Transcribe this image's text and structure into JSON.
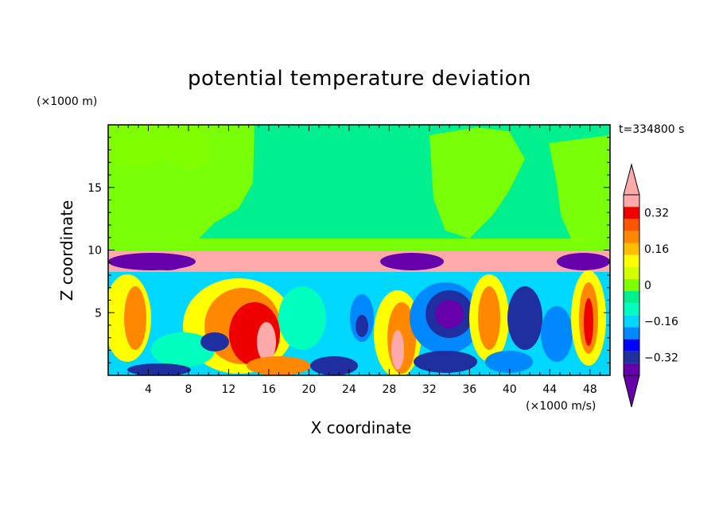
{
  "title": "potential temperature deviation",
  "time_label": "t=334800 s",
  "chart_data": {
    "type": "heatmap",
    "title": "potential temperature deviation",
    "xlabel": "X coordinate",
    "ylabel": "Z coordinate",
    "x_unit": "(×1000 m/s)",
    "y_unit": "(×1000 m)",
    "x_ticks": [
      "4",
      "8",
      "12",
      "16",
      "20",
      "24",
      "28",
      "32",
      "36",
      "40",
      "44",
      "48"
    ],
    "x_tick_values": [
      4,
      8,
      12,
      16,
      20,
      24,
      28,
      32,
      36,
      40,
      44,
      48
    ],
    "y_ticks": [
      "5",
      "10",
      "15"
    ],
    "y_tick_values": [
      5,
      10,
      15
    ],
    "xlim": [
      0,
      50
    ],
    "ylim": [
      0,
      20
    ],
    "colorbar": {
      "labels": [
        "0.32",
        "0.16",
        "0",
        "−0.16",
        "−0.32"
      ],
      "label_values": [
        0.32,
        0.16,
        0,
        -0.16,
        -0.32
      ],
      "levels": [
        -0.4,
        -0.36,
        -0.32,
        -0.28,
        -0.24,
        -0.2,
        -0.16,
        -0.12,
        -0.08,
        -0.04,
        0,
        0.04,
        0.08,
        0.12,
        0.16,
        0.2,
        0.24,
        0.28,
        0.32,
        0.36,
        0.4
      ],
      "colors": [
        "#6600aa",
        "#1f2fa0",
        "#0000ff",
        "#0088ff",
        "#00d7ff",
        "#00ffbe",
        "#00f090",
        "#7fff00",
        "#d4ff00",
        "#ffff00",
        "#ffbf00",
        "#ff8800",
        "#ff5500",
        "#ee0000",
        "#ffaaaa"
      ],
      "under_color": "#6600aa",
      "over_color": "#ffaaaa"
    }
  }
}
